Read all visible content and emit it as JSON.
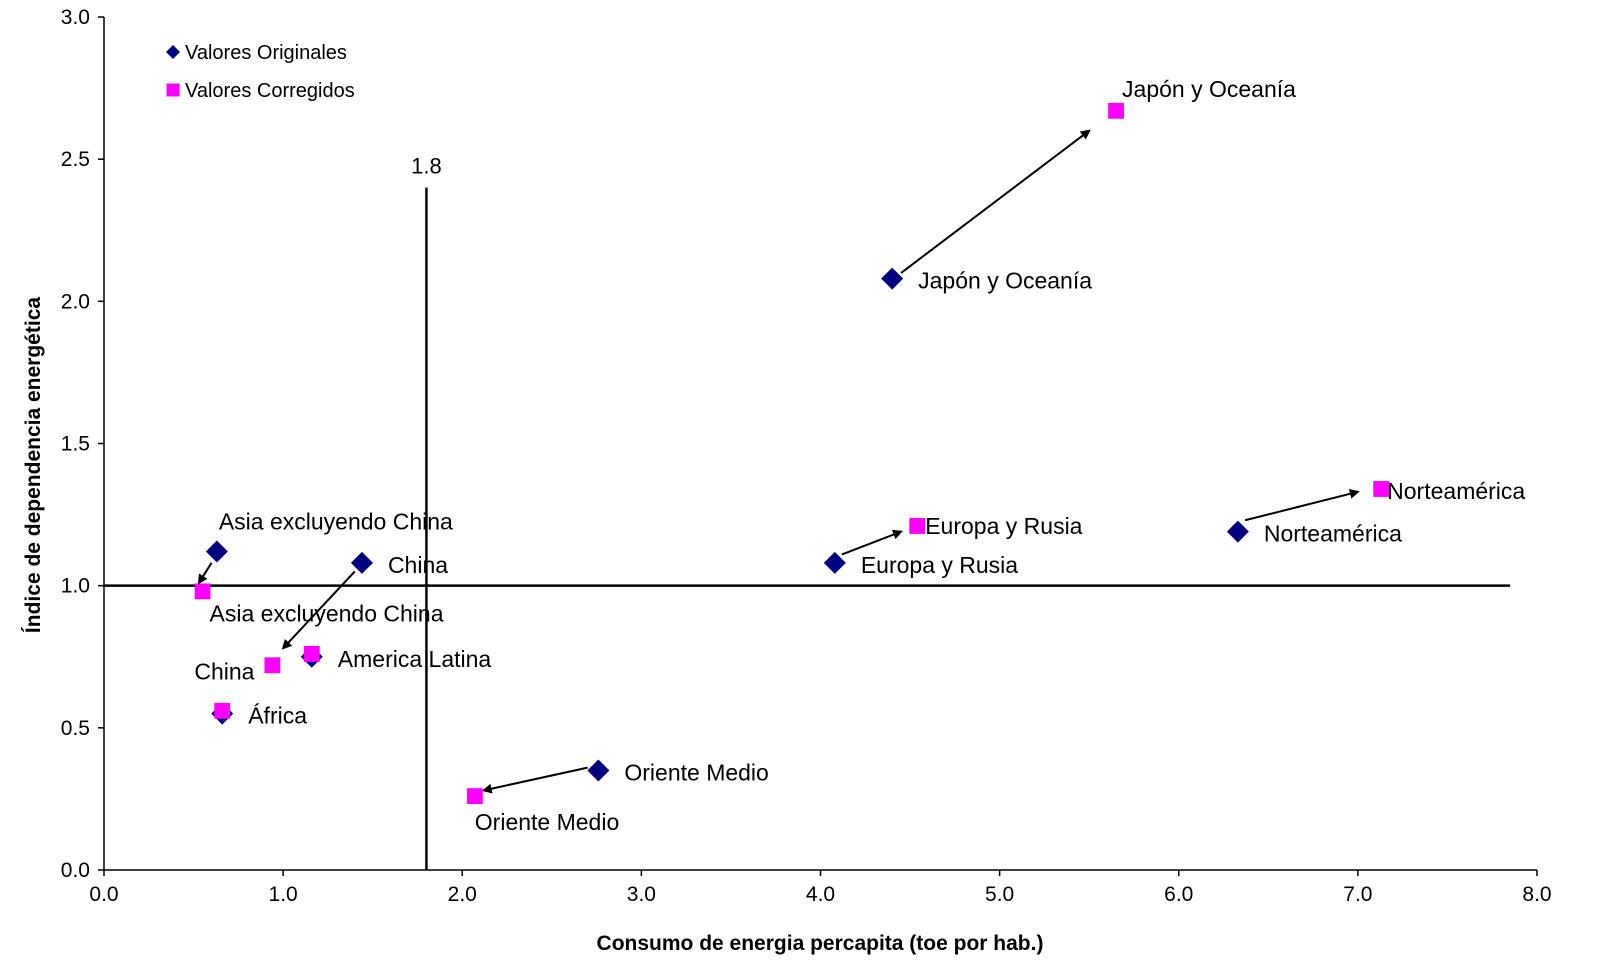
{
  "chart_data": {
    "type": "scatter",
    "title": "",
    "xlabel": "Consumo de energia percapita (toe por hab.)",
    "ylabel": "Índice de dependencia energética",
    "xlim": [
      0,
      8
    ],
    "ylim": [
      0,
      3
    ],
    "x_ticks": [
      "0.0",
      "1.0",
      "2.0",
      "3.0",
      "4.0",
      "5.0",
      "6.0",
      "7.0",
      "8.0"
    ],
    "y_ticks": [
      "0.0",
      "0.5",
      "1.0",
      "1.5",
      "2.0",
      "2.5",
      "3.0"
    ],
    "grid": false,
    "legend_position": "top-left",
    "series": [
      {
        "name": "Valores Originales",
        "marker": "diamond",
        "color": "#000080",
        "points": [
          {
            "label": "Japón y Oceanía",
            "x": 4.4,
            "y": 2.08
          },
          {
            "label": "Norteamérica",
            "x": 6.33,
            "y": 1.19
          },
          {
            "label": "Europa y Rusia",
            "x": 4.08,
            "y": 1.08
          },
          {
            "label": "Asia excluyendo China",
            "x": 0.63,
            "y": 1.12
          },
          {
            "label": "China",
            "x": 1.44,
            "y": 1.08
          },
          {
            "label": "America Latina",
            "x": 1.16,
            "y": 0.75
          },
          {
            "label": "África",
            "x": 0.66,
            "y": 0.55
          },
          {
            "label": "Oriente Medio",
            "x": 2.76,
            "y": 0.35
          }
        ]
      },
      {
        "name": "Valores Corregidos",
        "marker": "square",
        "color": "#FF00FF",
        "points": [
          {
            "label": "Japón y Oceanía",
            "x": 5.65,
            "y": 2.67
          },
          {
            "label": "Norteamérica",
            "x": 7.13,
            "y": 1.34
          },
          {
            "label": "Europa y Rusia",
            "x": 4.54,
            "y": 1.21
          },
          {
            "label": "Asia excluyendo China",
            "x": 0.55,
            "y": 0.98
          },
          {
            "label": "China",
            "x": 0.94,
            "y": 0.72
          },
          {
            "label": "America Latina",
            "x": 1.16,
            "y": 0.76
          },
          {
            "label": "África",
            "x": 0.66,
            "y": 0.56
          },
          {
            "label": "Oriente Medio",
            "x": 2.07,
            "y": 0.26
          }
        ]
      }
    ],
    "reference_lines": {
      "vertical": {
        "x": 1.8,
        "label": "1.8",
        "y_top": 2.4
      },
      "horizontal": {
        "y": 1.0,
        "x_end": 7.85
      }
    },
    "arrows": [
      {
        "from": [
          4.45,
          2.1
        ],
        "to": [
          5.5,
          2.6
        ]
      },
      {
        "from": [
          6.37,
          1.23
        ],
        "to": [
          7.0,
          1.33
        ]
      },
      {
        "from": [
          4.12,
          1.11
        ],
        "to": [
          4.45,
          1.19
        ]
      },
      {
        "from": [
          0.6,
          1.08
        ],
        "to": [
          0.53,
          1.01
        ]
      },
      {
        "from": [
          1.4,
          1.05
        ],
        "to": [
          1.0,
          0.78
        ]
      },
      {
        "from": [
          2.7,
          0.36
        ],
        "to": [
          2.12,
          0.28
        ]
      }
    ]
  }
}
